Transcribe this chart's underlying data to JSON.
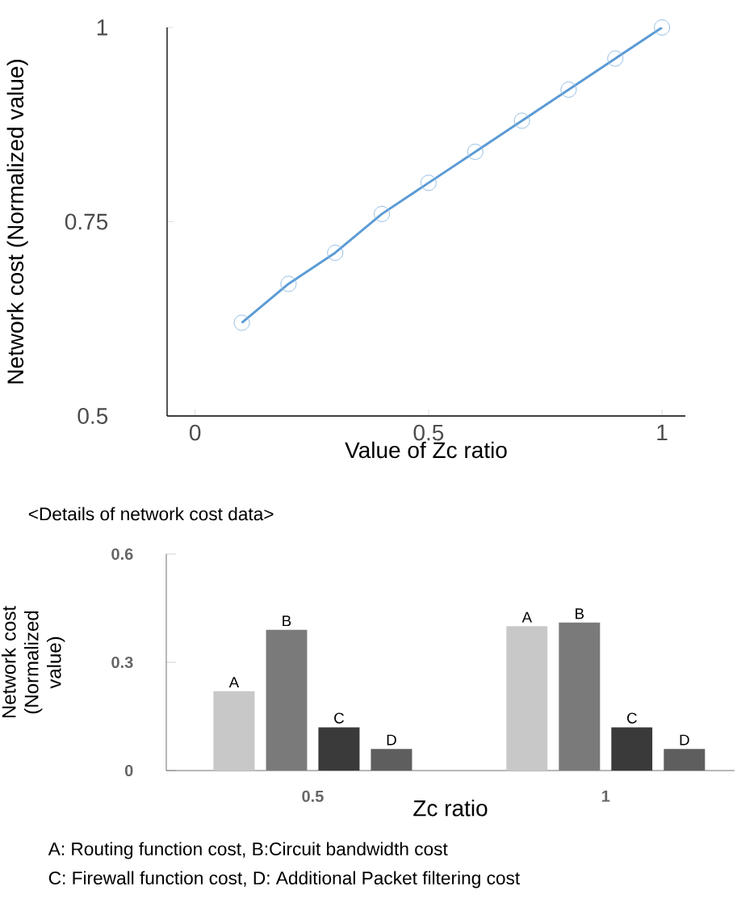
{
  "chart_data": [
    {
      "type": "line",
      "ylabel": "Network cost (Normalized value)",
      "xlabel": "Value of Zc ratio",
      "x": [
        0.1,
        0.2,
        0.3,
        0.4,
        0.5,
        0.6,
        0.7,
        0.8,
        0.9,
        1.0
      ],
      "series": [
        {
          "color": "#5b9bd5",
          "values": [
            0.62,
            0.67,
            0.71,
            0.76,
            0.8,
            0.84,
            0.88,
            0.92,
            0.96,
            1.0
          ]
        }
      ],
      "xlim": [
        -0.06,
        1.05
      ],
      "xticks": [
        0,
        0.5,
        1
      ],
      "ylim": [
        0.5,
        1
      ],
      "yticks": [
        0.5,
        0.75,
        1
      ],
      "marker": "circle",
      "line_style": "solid"
    },
    {
      "type": "bar",
      "title": "<Details of network cost data>",
      "ylabel": "Network cost (Normalized value)",
      "xlabel": "Zc ratio",
      "categories": [
        "0.5",
        "1"
      ],
      "series": [
        {
          "name": "A",
          "color": "#c8c8c8",
          "values": [
            0.22,
            0.4
          ]
        },
        {
          "name": "B",
          "color": "#7a7a7a",
          "values": [
            0.39,
            0.41
          ]
        },
        {
          "name": "C",
          "color": "#3a3a3a",
          "values": [
            0.12,
            0.12
          ]
        },
        {
          "name": "D",
          "color": "#5e5e5e",
          "values": [
            0.06,
            0.06
          ]
        }
      ],
      "ylim": [
        0,
        0.6
      ],
      "yticks": [
        0,
        0.3,
        0.6
      ],
      "annotations": [
        "A: Routing function cost, B:Circuit bandwidth cost",
        "C: Firewall function cost, D: Additional Packet filtering cost"
      ]
    }
  ]
}
